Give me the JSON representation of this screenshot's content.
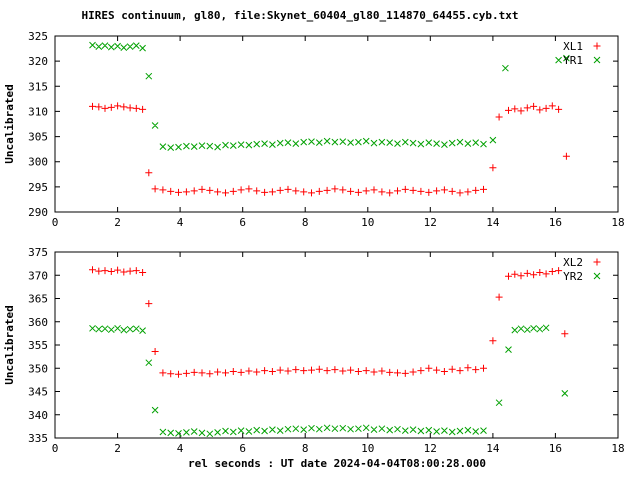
{
  "title": "HIRES continuum, gl80, file:Skynet_60404_gl80_114870_64455.cyb.txt",
  "xlabel": "rel seconds : UT date 2024-04-04T08:00:28.000",
  "colors": {
    "red": "#ff0000",
    "green": "#00a000",
    "axis": "#000000"
  },
  "chart_data": [
    {
      "type": "scatter",
      "ylabel": "Uncalibrated",
      "xlim": [
        0,
        18
      ],
      "ylim": [
        290,
        325
      ],
      "xticks": [
        0,
        2,
        4,
        6,
        8,
        10,
        12,
        14,
        16,
        18
      ],
      "yticks": [
        290,
        295,
        300,
        305,
        310,
        315,
        320,
        325
      ],
      "legend_position": "top-right",
      "grid": false,
      "series": [
        {
          "name": "XL1",
          "color": "red",
          "marker": "plus",
          "x": [
            1.2,
            1.4,
            1.6,
            1.8,
            2.0,
            2.2,
            2.4,
            2.6,
            2.8,
            3.0,
            3.2,
            3.45,
            3.7,
            3.95,
            4.2,
            4.45,
            4.7,
            4.95,
            5.2,
            5.45,
            5.7,
            5.95,
            6.2,
            6.45,
            6.7,
            6.95,
            7.2,
            7.45,
            7.7,
            7.95,
            8.2,
            8.45,
            8.7,
            8.95,
            9.2,
            9.45,
            9.7,
            9.95,
            10.2,
            10.45,
            10.7,
            10.95,
            11.2,
            11.45,
            11.7,
            11.95,
            12.2,
            12.45,
            12.7,
            12.95,
            13.2,
            13.45,
            13.7,
            14.0,
            14.2,
            14.5,
            14.7,
            14.9,
            15.1,
            15.3,
            15.5,
            15.7,
            15.9,
            16.1,
            16.35
          ],
          "y": [
            311.0,
            310.9,
            310.6,
            310.8,
            311.1,
            310.9,
            310.7,
            310.6,
            310.4,
            297.8,
            294.6,
            294.4,
            294.1,
            293.9,
            294.0,
            294.2,
            294.5,
            294.3,
            294.0,
            293.8,
            294.1,
            294.4,
            294.6,
            294.2,
            293.9,
            294.0,
            294.3,
            294.5,
            294.2,
            294.0,
            293.8,
            294.1,
            294.3,
            294.6,
            294.4,
            294.1,
            293.9,
            294.2,
            294.4,
            294.0,
            293.8,
            294.2,
            294.5,
            294.3,
            294.1,
            293.9,
            294.2,
            294.4,
            294.1,
            293.8,
            294.0,
            294.3,
            294.5,
            298.8,
            308.9,
            310.2,
            310.5,
            310.1,
            310.7,
            311.0,
            310.3,
            310.6,
            311.1,
            310.4,
            301.1
          ]
        },
        {
          "name": "YR1",
          "color": "green",
          "marker": "cross",
          "x": [
            1.2,
            1.4,
            1.6,
            1.8,
            2.0,
            2.2,
            2.4,
            2.6,
            2.8,
            3.0,
            3.2,
            3.45,
            3.7,
            3.95,
            4.2,
            4.45,
            4.7,
            4.95,
            5.2,
            5.45,
            5.7,
            5.95,
            6.2,
            6.45,
            6.7,
            6.95,
            7.2,
            7.45,
            7.7,
            7.95,
            8.2,
            8.45,
            8.7,
            8.95,
            9.2,
            9.45,
            9.7,
            9.95,
            10.2,
            10.45,
            10.7,
            10.95,
            11.2,
            11.45,
            11.7,
            11.95,
            12.2,
            12.45,
            12.7,
            12.95,
            13.2,
            13.45,
            13.7,
            14.0,
            14.4,
            16.1,
            16.35
          ],
          "y": [
            323.2,
            322.9,
            323.1,
            322.8,
            323.0,
            322.7,
            322.9,
            323.1,
            322.6,
            317.0,
            307.2,
            303.0,
            302.8,
            302.9,
            303.1,
            303.0,
            303.2,
            303.1,
            302.9,
            303.3,
            303.2,
            303.4,
            303.3,
            303.5,
            303.6,
            303.4,
            303.7,
            303.8,
            303.6,
            303.9,
            304.0,
            303.8,
            304.1,
            303.9,
            304.0,
            303.8,
            303.9,
            304.1,
            303.7,
            303.9,
            303.8,
            303.6,
            303.9,
            303.7,
            303.5,
            303.8,
            303.6,
            303.4,
            303.7,
            303.9,
            303.6,
            303.8,
            303.5,
            304.3,
            318.6,
            320.2,
            320.6
          ]
        }
      ]
    },
    {
      "type": "scatter",
      "ylabel": "Uncalibrated",
      "xlim": [
        0,
        18
      ],
      "ylim": [
        335,
        375
      ],
      "xticks": [
        0,
        2,
        4,
        6,
        8,
        10,
        12,
        14,
        16,
        18
      ],
      "yticks": [
        335,
        340,
        345,
        350,
        355,
        360,
        365,
        370,
        375
      ],
      "legend_position": "top-right",
      "grid": false,
      "series": [
        {
          "name": "XL2",
          "color": "red",
          "marker": "plus",
          "x": [
            1.2,
            1.4,
            1.6,
            1.8,
            2.0,
            2.2,
            2.4,
            2.6,
            2.8,
            3.0,
            3.2,
            3.45,
            3.7,
            3.95,
            4.2,
            4.45,
            4.7,
            4.95,
            5.2,
            5.45,
            5.7,
            5.95,
            6.2,
            6.45,
            6.7,
            6.95,
            7.2,
            7.45,
            7.7,
            7.95,
            8.2,
            8.45,
            8.7,
            8.95,
            9.2,
            9.45,
            9.7,
            9.95,
            10.2,
            10.45,
            10.7,
            10.95,
            11.2,
            11.45,
            11.7,
            11.95,
            12.2,
            12.45,
            12.7,
            12.95,
            13.2,
            13.45,
            13.7,
            14.0,
            14.2,
            14.5,
            14.7,
            14.9,
            15.1,
            15.3,
            15.5,
            15.7,
            15.9,
            16.1,
            16.3
          ],
          "y": [
            371.2,
            370.9,
            371.0,
            370.8,
            371.1,
            370.7,
            370.9,
            371.0,
            370.6,
            363.9,
            353.6,
            349.0,
            348.8,
            348.7,
            348.9,
            349.1,
            349.0,
            348.8,
            349.2,
            349.0,
            349.3,
            349.1,
            349.4,
            349.2,
            349.5,
            349.3,
            349.6,
            349.4,
            349.7,
            349.5,
            349.6,
            349.8,
            349.5,
            349.7,
            349.4,
            349.6,
            349.3,
            349.5,
            349.2,
            349.4,
            349.1,
            349.0,
            348.9,
            349.2,
            349.5,
            350.0,
            349.6,
            349.3,
            349.8,
            349.5,
            350.1,
            349.7,
            350.0,
            355.9,
            365.3,
            369.8,
            370.2,
            369.9,
            370.4,
            370.1,
            370.6,
            370.3,
            370.8,
            371.0,
            357.4
          ]
        },
        {
          "name": "YR2",
          "color": "green",
          "marker": "cross",
          "x": [
            1.2,
            1.4,
            1.6,
            1.8,
            2.0,
            2.2,
            2.4,
            2.6,
            2.8,
            3.0,
            3.2,
            3.45,
            3.7,
            3.95,
            4.2,
            4.45,
            4.7,
            4.95,
            5.2,
            5.45,
            5.7,
            5.95,
            6.2,
            6.45,
            6.7,
            6.95,
            7.2,
            7.45,
            7.7,
            7.95,
            8.2,
            8.45,
            8.7,
            8.95,
            9.2,
            9.45,
            9.7,
            9.95,
            10.2,
            10.45,
            10.7,
            10.95,
            11.2,
            11.45,
            11.7,
            11.95,
            12.2,
            12.45,
            12.7,
            12.95,
            13.2,
            13.45,
            13.7,
            14.2,
            14.5,
            14.7,
            14.9,
            15.1,
            15.3,
            15.5,
            15.7,
            16.3
          ],
          "y": [
            358.6,
            358.4,
            358.5,
            358.3,
            358.6,
            358.2,
            358.4,
            358.5,
            358.1,
            351.2,
            341.0,
            336.3,
            336.1,
            336.0,
            336.2,
            336.4,
            336.1,
            335.9,
            336.2,
            336.5,
            336.3,
            336.6,
            336.4,
            336.7,
            336.5,
            336.8,
            336.6,
            336.9,
            337.0,
            336.8,
            337.1,
            336.9,
            337.2,
            337.0,
            337.1,
            336.9,
            337.0,
            337.2,
            336.8,
            337.0,
            336.7,
            336.9,
            336.6,
            336.8,
            336.5,
            336.7,
            336.4,
            336.6,
            336.3,
            336.5,
            336.7,
            336.4,
            336.6,
            342.6,
            354.0,
            358.2,
            358.5,
            358.3,
            358.6,
            358.4,
            358.7,
            344.6
          ]
        }
      ]
    }
  ]
}
